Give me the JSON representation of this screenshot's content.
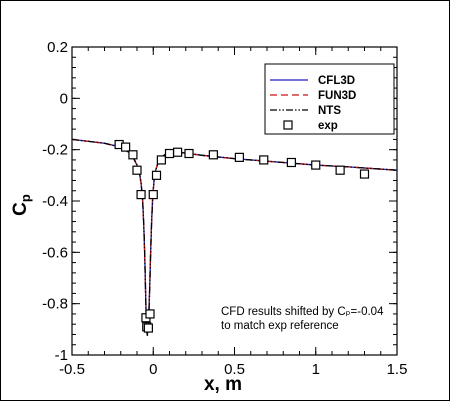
{
  "chart_data": {
    "type": "line",
    "xlabel": "x, m",
    "ylabel_main": "C",
    "ylabel_sub": "p",
    "xlim": [
      -0.5,
      1.5
    ],
    "ylim": [
      -1,
      0.2
    ],
    "xticks": [
      -0.5,
      0,
      0.5,
      1,
      1.5
    ],
    "xtick_labels": [
      "-0.5",
      "0",
      "0.5",
      "1",
      "1.5"
    ],
    "yticks": [
      0.2,
      0,
      -0.2,
      -0.4,
      -0.6,
      -0.8,
      -1
    ],
    "ytick_labels": [
      "0.2",
      "0",
      "-0.2",
      "-0.4",
      "-0.6",
      "-0.8",
      "-1"
    ],
    "grid": false,
    "legend_position": "top-right",
    "annotation": [
      "CFD results shifted by Cₚ=-0.04",
      "to match exp reference"
    ],
    "series": [
      {
        "name": "CFL3D",
        "style": "solid",
        "color": "#1f1fbf",
        "x": [
          -0.5,
          -0.3,
          -0.2,
          -0.15,
          -0.12,
          -0.1,
          -0.085,
          -0.075,
          -0.065,
          -0.058,
          -0.052,
          -0.047,
          -0.043,
          -0.04,
          -0.036,
          -0.032,
          -0.027,
          -0.022,
          -0.016,
          -0.01,
          -0.003,
          0.005,
          0.015,
          0.03,
          0.05,
          0.08,
          0.12,
          0.18,
          0.3,
          0.5,
          0.8,
          1.0,
          1.2,
          1.5
        ],
        "y": [
          -0.16,
          -0.175,
          -0.19,
          -0.21,
          -0.235,
          -0.26,
          -0.29,
          -0.33,
          -0.4,
          -0.5,
          -0.62,
          -0.76,
          -0.86,
          -0.91,
          -0.92,
          -0.9,
          -0.84,
          -0.74,
          -0.6,
          -0.48,
          -0.38,
          -0.32,
          -0.28,
          -0.25,
          -0.23,
          -0.215,
          -0.21,
          -0.212,
          -0.222,
          -0.235,
          -0.25,
          -0.26,
          -0.267,
          -0.28
        ]
      },
      {
        "name": "FUN3D",
        "style": "dashed",
        "color": "#cc1414",
        "x": [
          -0.5,
          -0.3,
          -0.2,
          -0.15,
          -0.12,
          -0.1,
          -0.085,
          -0.075,
          -0.065,
          -0.058,
          -0.052,
          -0.047,
          -0.043,
          -0.04,
          -0.036,
          -0.032,
          -0.027,
          -0.022,
          -0.016,
          -0.01,
          -0.003,
          0.005,
          0.015,
          0.03,
          0.05,
          0.08,
          0.12,
          0.18,
          0.3,
          0.5,
          0.8,
          1.0,
          1.2,
          1.5
        ],
        "y": [
          -0.16,
          -0.175,
          -0.19,
          -0.21,
          -0.236,
          -0.262,
          -0.292,
          -0.332,
          -0.402,
          -0.502,
          -0.62,
          -0.76,
          -0.86,
          -0.905,
          -0.915,
          -0.898,
          -0.84,
          -0.74,
          -0.6,
          -0.48,
          -0.38,
          -0.32,
          -0.28,
          -0.25,
          -0.23,
          -0.216,
          -0.21,
          -0.212,
          -0.222,
          -0.235,
          -0.25,
          -0.26,
          -0.267,
          -0.28
        ]
      },
      {
        "name": "NTS",
        "style": "dashdotdot",
        "color": "#000000",
        "x": [
          -0.5,
          -0.3,
          -0.2,
          -0.15,
          -0.12,
          -0.1,
          -0.085,
          -0.075,
          -0.065,
          -0.058,
          -0.052,
          -0.047,
          -0.043,
          -0.04,
          -0.036,
          -0.032,
          -0.027,
          -0.022,
          -0.016,
          -0.01,
          -0.003,
          0.005,
          0.015,
          0.03,
          0.05,
          0.08,
          0.12,
          0.18,
          0.3,
          0.5,
          0.8,
          1.0,
          1.2,
          1.5
        ],
        "y": [
          -0.16,
          -0.175,
          -0.19,
          -0.21,
          -0.234,
          -0.259,
          -0.289,
          -0.329,
          -0.399,
          -0.499,
          -0.62,
          -0.76,
          -0.86,
          -0.91,
          -0.925,
          -0.905,
          -0.84,
          -0.74,
          -0.6,
          -0.48,
          -0.38,
          -0.32,
          -0.28,
          -0.25,
          -0.23,
          -0.215,
          -0.21,
          -0.212,
          -0.222,
          -0.235,
          -0.25,
          -0.26,
          -0.267,
          -0.28
        ]
      }
    ],
    "markers": {
      "name": "exp",
      "shape": "open-square",
      "color": "#000000",
      "x": [
        -0.21,
        -0.17,
        -0.125,
        -0.1,
        -0.075,
        -0.045,
        -0.04,
        -0.03,
        -0.02,
        0.0,
        0.02,
        0.05,
        0.1,
        0.15,
        0.22,
        0.37,
        0.53,
        0.68,
        0.85,
        1.0,
        1.15,
        1.3
      ],
      "y": [
        -0.18,
        -0.19,
        -0.22,
        -0.28,
        -0.375,
        -0.855,
        -0.89,
        -0.895,
        -0.84,
        -0.375,
        -0.3,
        -0.24,
        -0.215,
        -0.21,
        -0.215,
        -0.22,
        -0.23,
        -0.24,
        -0.25,
        -0.26,
        -0.28,
        -0.295
      ]
    }
  }
}
